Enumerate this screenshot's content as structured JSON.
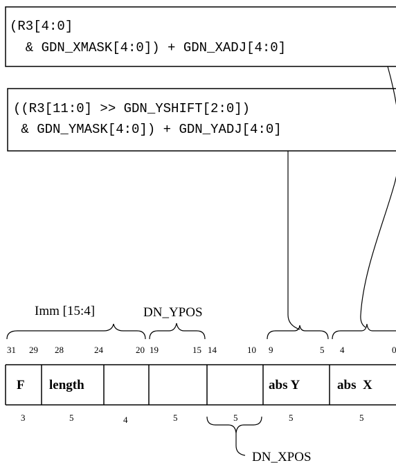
{
  "x_expression": {
    "line1": "(R3[4:0]",
    "line2": "  & GDN_XMASK[4:0]) + GDN_XADJ[4:0]"
  },
  "y_expression": {
    "line1": "((R3[11:0] >> GDN_YSHIFT[2:0])",
    "line2": " & GDN_YMASK[4:0]) + GDN_YADJ[4:0]"
  },
  "group_labels": {
    "imm": "Imm [15:4]",
    "dn_ypos": "DN_YPOS",
    "dn_xpos": "DN_XPOS"
  },
  "bit_numbers": [
    "31",
    "29",
    "28",
    "24",
    "20",
    "19",
    "15",
    "14",
    "10",
    "9",
    "5",
    "4",
    "0"
  ],
  "fields": [
    {
      "label": "F",
      "width": "3"
    },
    {
      "label": "length",
      "width": "5"
    },
    {
      "label": "",
      "width": "4"
    },
    {
      "label": "",
      "width": "5"
    },
    {
      "label": "",
      "width": "5"
    },
    {
      "label": "abs Y",
      "width": "5"
    },
    {
      "label": "abs  X",
      "width": "5"
    }
  ]
}
